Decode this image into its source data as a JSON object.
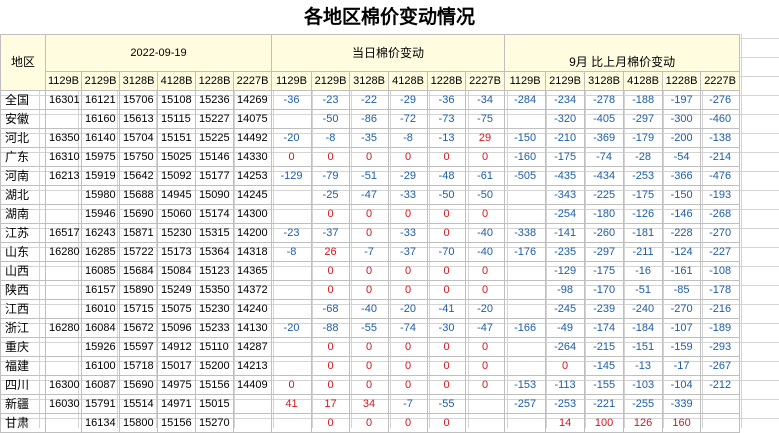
{
  "title": "各地区棉价变动情况",
  "header": {
    "region_label": "地区",
    "date": "2022-09-19",
    "daily_label": "当日棉价变动",
    "monthly_label": "9月 比上月棉价变动"
  },
  "columns": [
    "1129B",
    "2129B",
    "3128B",
    "4128B",
    "1228B",
    "2227B"
  ],
  "colors": {
    "negative": "#1f5ea8",
    "positive": "#d8141c",
    "header_bg": "#fffce0"
  },
  "rows": [
    {
      "region": "全国",
      "prices": [
        "16301",
        "16121",
        "15706",
        "15108",
        "15236",
        "14269"
      ],
      "daily": [
        "-36",
        "-23",
        "-22",
        "-29",
        "-36",
        "-34"
      ],
      "monthly": [
        "-284",
        "-234",
        "-278",
        "-188",
        "-197",
        "-276"
      ]
    },
    {
      "region": "安徽",
      "prices": [
        "",
        "16160",
        "15613",
        "15115",
        "15227",
        "14075"
      ],
      "daily": [
        "",
        "-50",
        "-86",
        "-72",
        "-73",
        "-75"
      ],
      "monthly": [
        "",
        "-320",
        "-405",
        "-297",
        "-300",
        "-460"
      ]
    },
    {
      "region": "河北",
      "prices": [
        "16350",
        "16140",
        "15704",
        "15151",
        "15225",
        "14492"
      ],
      "daily": [
        "-20",
        "-8",
        "-35",
        "-8",
        "-13",
        "29"
      ],
      "monthly": [
        "-150",
        "-210",
        "-369",
        "-179",
        "-200",
        "-138"
      ]
    },
    {
      "region": "广东",
      "prices": [
        "16310",
        "15975",
        "15750",
        "15025",
        "15146",
        "14330"
      ],
      "daily": [
        "0",
        "0",
        "0",
        "0",
        "0",
        "0"
      ],
      "monthly": [
        "-160",
        "-175",
        "-74",
        "-28",
        "-54",
        "-214"
      ]
    },
    {
      "region": "河南",
      "prices": [
        "16213",
        "15919",
        "15642",
        "15092",
        "15177",
        "14253"
      ],
      "daily": [
        "-129",
        "-79",
        "-51",
        "-29",
        "-48",
        "-61"
      ],
      "monthly": [
        "-505",
        "-435",
        "-434",
        "-253",
        "-366",
        "-476"
      ]
    },
    {
      "region": "湖北",
      "prices": [
        "",
        "15980",
        "15688",
        "14945",
        "15090",
        "14245"
      ],
      "daily": [
        "",
        "-25",
        "-47",
        "-33",
        "-50",
        "-50"
      ],
      "monthly": [
        "",
        "-343",
        "-225",
        "-175",
        "-150",
        "-193"
      ]
    },
    {
      "region": "湖南",
      "prices": [
        "",
        "15946",
        "15690",
        "15060",
        "15174",
        "14300"
      ],
      "daily": [
        "",
        "0",
        "0",
        "0",
        "0",
        "0"
      ],
      "monthly": [
        "",
        "-254",
        "-180",
        "-126",
        "-146",
        "-268"
      ]
    },
    {
      "region": "江苏",
      "prices": [
        "16517",
        "16243",
        "15871",
        "15230",
        "15315",
        "14200"
      ],
      "daily": [
        "-23",
        "-37",
        "0",
        "-33",
        "0",
        "-40"
      ],
      "monthly": [
        "-338",
        "-141",
        "-260",
        "-181",
        "-228",
        "-270"
      ]
    },
    {
      "region": "山东",
      "prices": [
        "16280",
        "16285",
        "15722",
        "15173",
        "15364",
        "14318"
      ],
      "daily": [
        "-8",
        "26",
        "-7",
        "-37",
        "-70",
        "-40"
      ],
      "monthly": [
        "-176",
        "-235",
        "-297",
        "-211",
        "-124",
        "-227"
      ]
    },
    {
      "region": "山西",
      "prices": [
        "",
        "16085",
        "15684",
        "15084",
        "15123",
        "14365"
      ],
      "daily": [
        "",
        "0",
        "0",
        "0",
        "0",
        "0"
      ],
      "monthly": [
        "",
        "-129",
        "-175",
        "-16",
        "-161",
        "-108"
      ]
    },
    {
      "region": "陕西",
      "prices": [
        "",
        "16157",
        "15890",
        "15249",
        "15350",
        "14372"
      ],
      "daily": [
        "",
        "0",
        "0",
        "0",
        "0",
        "0"
      ],
      "monthly": [
        "",
        "-98",
        "-170",
        "-51",
        "-85",
        "-178"
      ]
    },
    {
      "region": "江西",
      "prices": [
        "",
        "16010",
        "15715",
        "15075",
        "15230",
        "14240"
      ],
      "daily": [
        "",
        "-68",
        "-40",
        "-20",
        "-41",
        "-20"
      ],
      "monthly": [
        "",
        "-245",
        "-239",
        "-240",
        "-270",
        "-216"
      ]
    },
    {
      "region": "浙江",
      "prices": [
        "16280",
        "16084",
        "15672",
        "15096",
        "15233",
        "14130"
      ],
      "daily": [
        "-20",
        "-88",
        "-55",
        "-74",
        "-30",
        "-47"
      ],
      "monthly": [
        "-166",
        "-49",
        "-174",
        "-184",
        "-107",
        "-189"
      ]
    },
    {
      "region": "重庆",
      "prices": [
        "",
        "15926",
        "15597",
        "14912",
        "15110",
        "14287"
      ],
      "daily": [
        "",
        "0",
        "0",
        "0",
        "0",
        "0"
      ],
      "monthly": [
        "",
        "-264",
        "-215",
        "-151",
        "-159",
        "-293"
      ]
    },
    {
      "region": "福建",
      "prices": [
        "",
        "16100",
        "15718",
        "15017",
        "15200",
        "14213"
      ],
      "daily": [
        "",
        "0",
        "0",
        "0",
        "0",
        "0"
      ],
      "monthly": [
        "",
        "0",
        "-145",
        "-13",
        "-17",
        "-267"
      ]
    },
    {
      "region": "四川",
      "prices": [
        "16300",
        "16087",
        "15690",
        "14975",
        "15156",
        "14409"
      ],
      "daily": [
        "0",
        "0",
        "0",
        "0",
        "0",
        "0"
      ],
      "monthly": [
        "-153",
        "-113",
        "-155",
        "-103",
        "-104",
        "-212"
      ]
    },
    {
      "region": "新疆",
      "prices": [
        "16030",
        "15791",
        "15514",
        "14971",
        "15015",
        ""
      ],
      "daily": [
        "41",
        "17",
        "34",
        "-7",
        "-55",
        ""
      ],
      "monthly": [
        "-257",
        "-253",
        "-221",
        "-255",
        "-339",
        ""
      ]
    },
    {
      "region": "甘肃",
      "prices": [
        "",
        "16134",
        "15800",
        "15156",
        "15270",
        ""
      ],
      "daily": [
        "",
        "0",
        "0",
        "0",
        "0",
        ""
      ],
      "monthly": [
        "",
        "14",
        "100",
        "126",
        "160",
        ""
      ]
    }
  ]
}
